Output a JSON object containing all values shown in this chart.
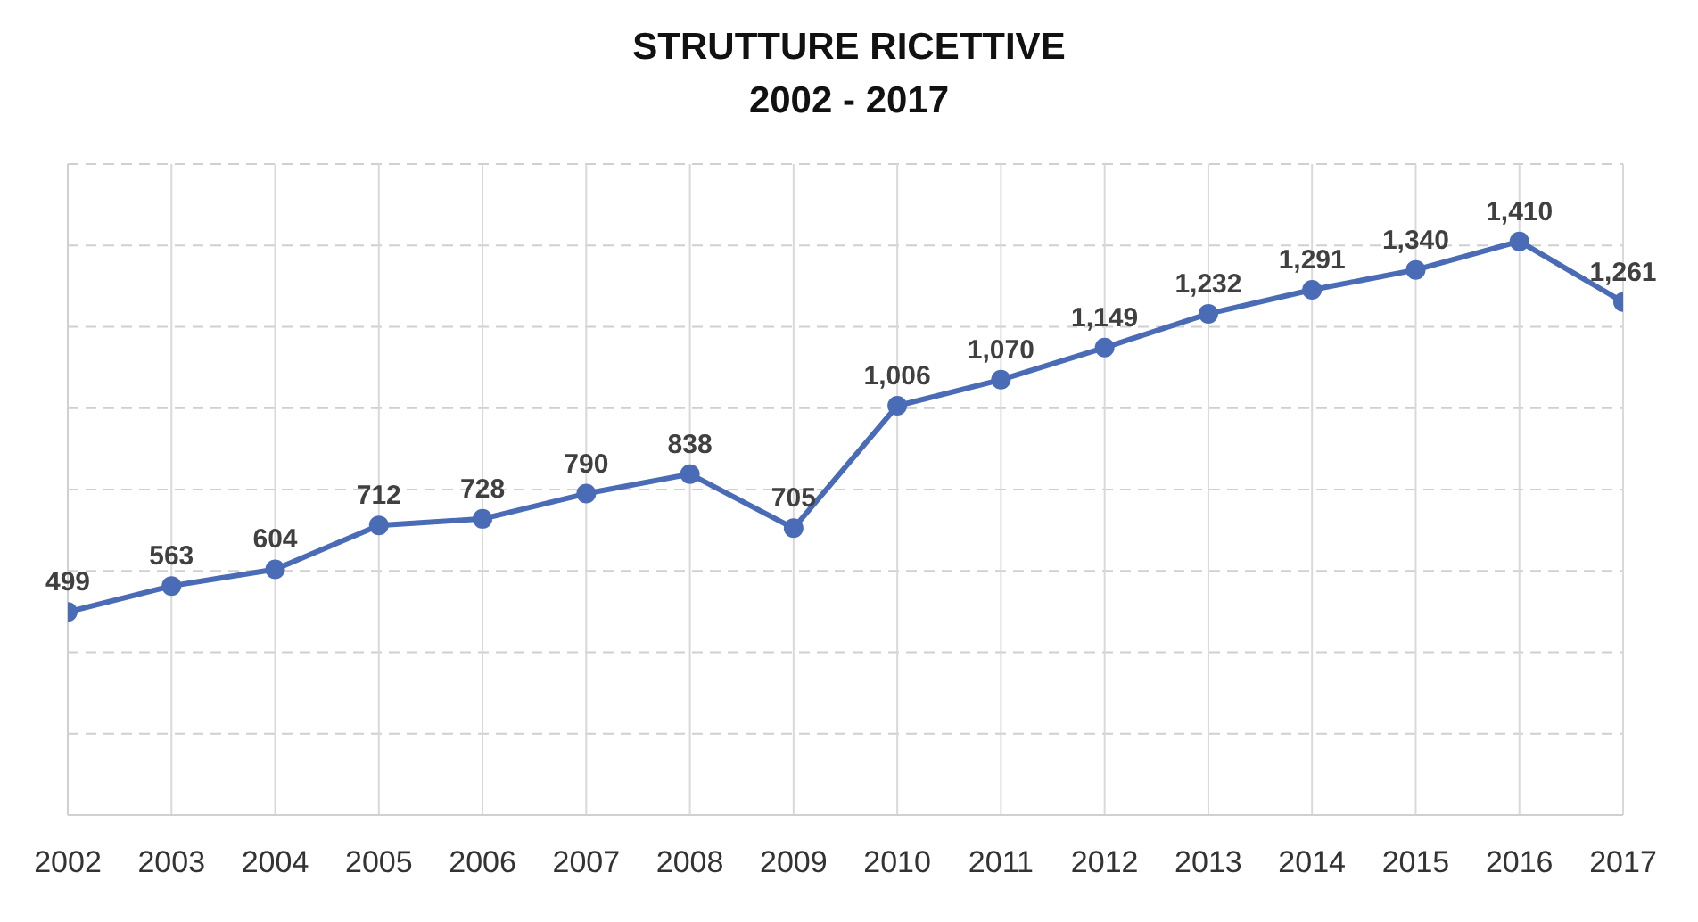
{
  "chart_data": {
    "type": "line",
    "title": "STRUTTURE RICETTIVE",
    "subtitle": "2002 - 2017",
    "categories": [
      "2002",
      "2003",
      "2004",
      "2005",
      "2006",
      "2007",
      "2008",
      "2009",
      "2010",
      "2011",
      "2012",
      "2013",
      "2014",
      "2015",
      "2016",
      "2017"
    ],
    "series": [
      {
        "color": "#4a6bb5",
        "values": [
          499,
          563,
          604,
          712,
          728,
          790,
          838,
          705,
          1006,
          1070,
          1149,
          1232,
          1291,
          1340,
          1410,
          1261
        ],
        "value_labels": [
          "499",
          "563",
          "604",
          "712",
          "728",
          "790",
          "838",
          "705",
          "1,006",
          "1,070",
          "1,149",
          "1,232",
          "1,291",
          "1,340",
          "1,410",
          "1,261"
        ]
      }
    ],
    "ylim": [
      0,
      1600
    ],
    "yticks": [
      {
        "value": 0,
        "label": null
      },
      {
        "value": 200,
        "label": null
      },
      {
        "value": 400,
        "label": null
      },
      {
        "value": 600,
        "label": null
      },
      {
        "value": 800,
        "label": null
      },
      {
        "value": 1000,
        "label": null
      },
      {
        "value": 1200,
        "label": null
      },
      {
        "value": 1400,
        "label": null
      },
      {
        "value": 1600,
        "label": null
      }
    ],
    "tick_labels": "x",
    "grid": true,
    "marker": "circle",
    "line_style": "solid"
  }
}
